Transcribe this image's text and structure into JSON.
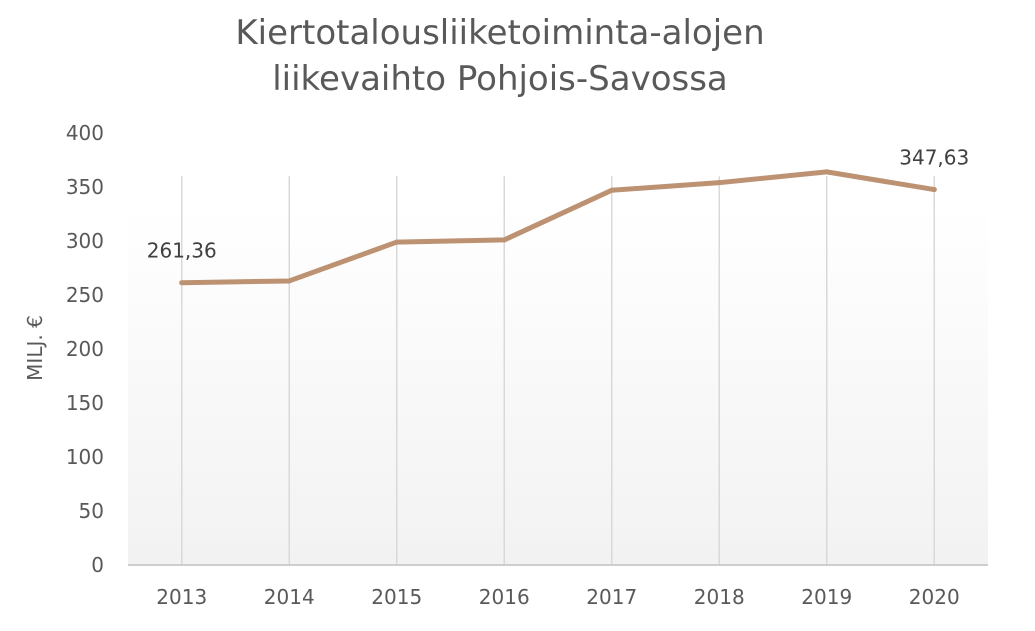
{
  "chart_data": {
    "type": "line",
    "title_lines": [
      "Kiertotalousliiketoiminta-alojen",
      "liikevaihto Pohjois-Savossa"
    ],
    "ylabel": "MILJ. €",
    "xlabel": "",
    "categories": [
      "2013",
      "2014",
      "2015",
      "2016",
      "2017",
      "2018",
      "2019",
      "2020"
    ],
    "y_ticks": [
      "0",
      "50",
      "100",
      "150",
      "200",
      "250",
      "300",
      "350",
      "400"
    ],
    "ylim": [
      0,
      400
    ],
    "series": [
      {
        "values": [
          261.36,
          263,
          299,
          301,
          347,
          354,
          364,
          347.63
        ]
      }
    ],
    "data_labels": [
      {
        "index": 0,
        "text": "261,36"
      },
      {
        "index": 7,
        "text": "347,63"
      }
    ],
    "grid": "vertical lines at categories",
    "legend": "none",
    "colors": {
      "line": "#BC9272",
      "grid": "#D9D9D9",
      "axis": "#BFBFBF",
      "plot_gradient_top": "#FFFFFF",
      "plot_gradient_bottom": "#F2F2F2"
    }
  }
}
